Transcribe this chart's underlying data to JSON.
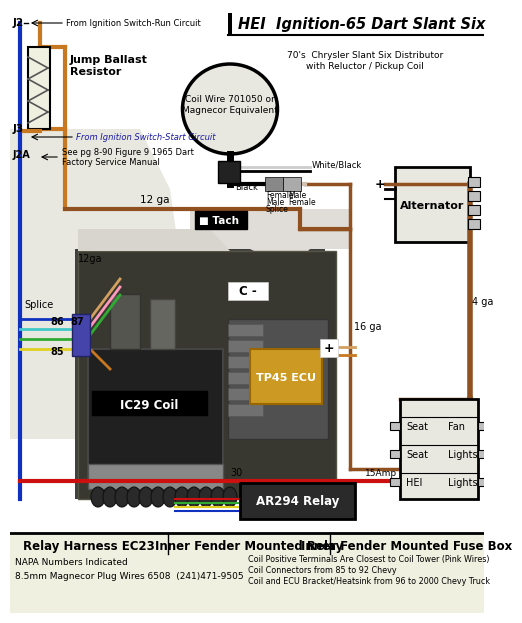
{
  "title": "HEI  Ignition-65 Dart Slant Six",
  "bg_color": "#ffffff",
  "wire_colors": {
    "orange": "#c87820",
    "blue": "#1030c0",
    "red": "#cc1010",
    "green": "#30aa30",
    "brown": "#905020",
    "pink": "#ff99bb",
    "yellow": "#e0d020",
    "cyan": "#40c8c8",
    "black": "#111111",
    "white": "#f0f0f0",
    "tan": "#d4a060"
  },
  "footer_labels": [
    "Relay Harness EC23",
    "Inner Fender Mounted Relay",
    "Inner Fender Mounted Fuse Box"
  ],
  "footer_note1": "NAPA Numbers Indicated",
  "footer_note2": "8.5mm Magnecor Plug Wires 6508  (241)471-9505",
  "footer_right1": "Coil Positive Terminals Are Closest to Coil Tower (Pink Wires)",
  "footer_right2": "Coil Connectors from 85 to 92 Chevy",
  "footer_right3": "Coil and ECU Bracket/Heatsink from 96 to 2000 Chevy Truck"
}
